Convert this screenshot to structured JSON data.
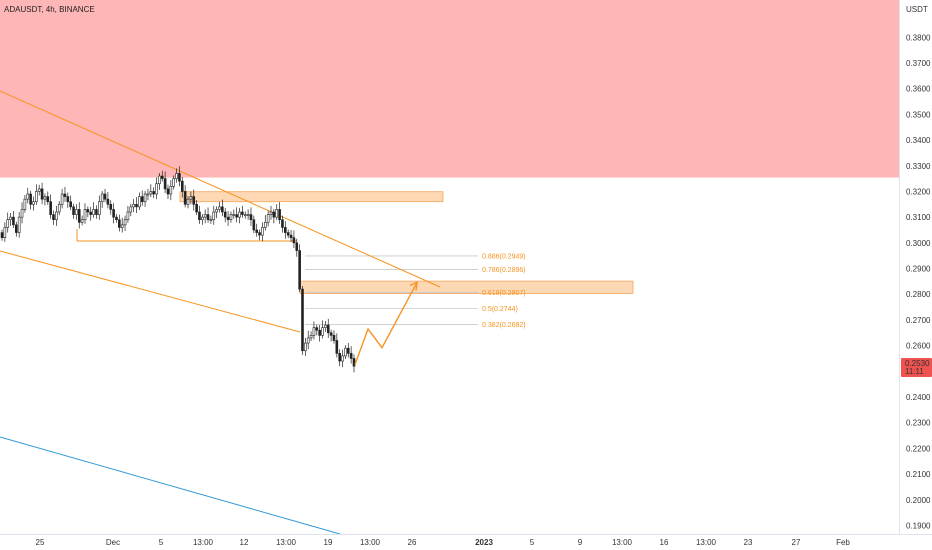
{
  "header": {
    "title": "ADAUSDT, 4h, BINANCE"
  },
  "colors": {
    "resistance_zone": "#ffb6b6",
    "supply_zone_fill": "#fcd8b4",
    "supply_zone_stroke": "#f7a55a",
    "orange": "#f7931e",
    "fib_text": "#f7931e",
    "blue_line": "#2f9bd6",
    "candle": "#222222",
    "price_badge": "#ef5350",
    "price_badge_text": "#ffffff"
  },
  "chart_data": {
    "type": "candlestick",
    "symbol": "ADAUSDT",
    "interval": "4h",
    "exchange": "BINANCE",
    "y_unit": "USDT",
    "ylim": [
      0.1867,
      0.3945
    ],
    "y_ticks": [
      "0.3800",
      "0.3700",
      "0.3600",
      "0.3500",
      "0.3400",
      "0.3300",
      "0.3200",
      "0.3100",
      "0.3000",
      "0.2900",
      "0.2800",
      "0.2700",
      "0.2600",
      "0.2400",
      "0.2300",
      "0.2200",
      "0.2100",
      "0.2000",
      "0.1900"
    ],
    "x_ticks": [
      "25",
      "Dec",
      "5",
      "13:00",
      "12",
      "13:00",
      "19",
      "13:00",
      "26",
      "2023",
      "5",
      "9",
      "13:00",
      "16",
      "13:00",
      "23",
      "27",
      "Feb"
    ],
    "current_price": {
      "label": "0.2530",
      "countdown": "11:11"
    },
    "close_path": [
      0.302,
      0.306,
      0.309,
      0.31,
      0.307,
      0.304,
      0.31,
      0.313,
      0.317,
      0.319,
      0.315,
      0.316,
      0.32,
      0.321,
      0.317,
      0.318,
      0.316,
      0.311,
      0.309,
      0.312,
      0.315,
      0.319,
      0.318,
      0.316,
      0.314,
      0.311,
      0.313,
      0.308,
      0.309,
      0.313,
      0.312,
      0.311,
      0.313,
      0.311,
      0.316,
      0.319,
      0.317,
      0.315,
      0.313,
      0.31,
      0.309,
      0.306,
      0.307,
      0.309,
      0.312,
      0.314,
      0.315,
      0.314,
      0.318,
      0.316,
      0.319,
      0.319,
      0.32,
      0.319,
      0.323,
      0.326,
      0.325,
      0.321,
      0.319,
      0.322,
      0.325,
      0.327,
      0.324,
      0.32,
      0.315,
      0.317,
      0.318,
      0.315,
      0.312,
      0.309,
      0.31,
      0.311,
      0.309,
      0.309,
      0.312,
      0.313,
      0.314,
      0.312,
      0.31,
      0.309,
      0.311,
      0.311,
      0.31,
      0.312,
      0.311,
      0.311,
      0.311,
      0.309,
      0.305,
      0.304,
      0.303,
      0.306,
      0.308,
      0.311,
      0.312,
      0.31,
      0.313,
      0.309,
      0.306,
      0.304,
      0.303,
      0.302,
      0.3,
      0.297,
      0.282,
      0.258,
      0.261,
      0.263,
      0.264,
      0.267,
      0.266,
      0.264,
      0.267,
      0.268,
      0.265,
      0.264,
      0.262,
      0.257,
      0.254,
      0.256,
      0.259,
      0.257,
      0.255,
      0.252
    ],
    "annotations": {
      "resistance_zone": {
        "y_top": 0.3945,
        "y_bottom": 0.3254
      },
      "supply_zones": [
        {
          "y_top": 0.3199,
          "y_bottom": 0.316
        },
        {
          "y_top": 0.2851,
          "y_bottom": 0.2803
        }
      ],
      "support_level": 0.3007,
      "fib_levels": [
        {
          "ratio": "0.886",
          "price": "0.2949",
          "label": "0.886(0.2949)"
        },
        {
          "ratio": "0.786",
          "price": "0.2896",
          "label": "0.786(0.2896)"
        },
        {
          "ratio": "0.618",
          "price": "0.2807",
          "label": "0.618(0.2807)"
        },
        {
          "ratio": "0.5",
          "price": "0.2744",
          "label": "0.5(0.2744)"
        },
        {
          "ratio": "0.382",
          "price": "0.2682",
          "label": "0.382(0.2682)"
        }
      ],
      "projection_path": [
        0.2526,
        0.2665,
        0.2592,
        0.2846
      ]
    }
  }
}
